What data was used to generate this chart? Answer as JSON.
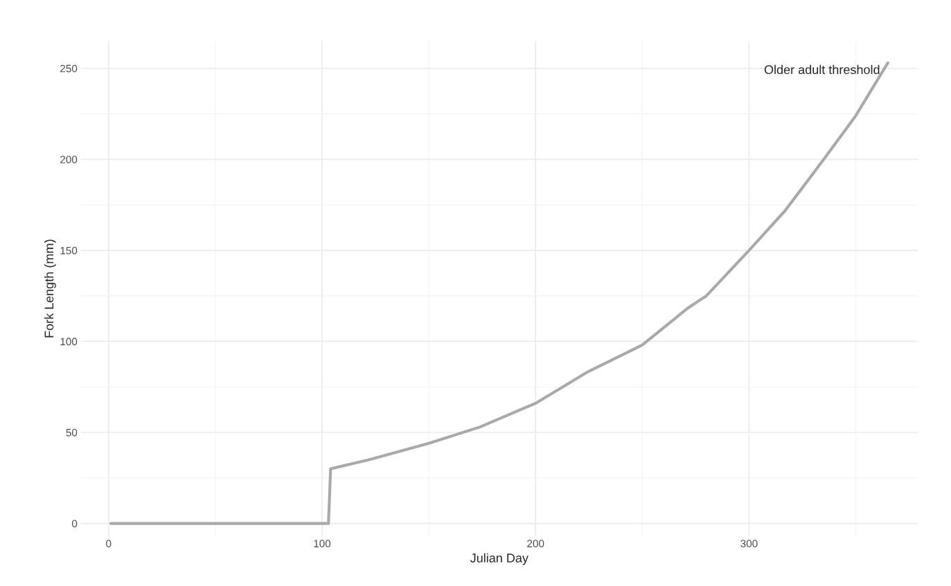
{
  "chart_data": {
    "type": "line",
    "xlabel": "Julian Day",
    "ylabel": "Fork Length (mm)",
    "series": [
      {
        "color": "#a9a9a9",
        "x": [
          1,
          103,
          104,
          122,
          150,
          174,
          200,
          224,
          250,
          271,
          280,
          300,
          317,
          335,
          350,
          365
        ],
        "values": [
          0,
          0,
          30,
          35,
          44,
          53,
          66,
          83,
          98,
          118,
          125,
          150,
          172,
          200,
          224,
          253
        ]
      }
    ],
    "annotations": [
      "Older adult threshold"
    ],
    "xlim": [
      -13,
      379
    ],
    "ylim": [
      -7,
      265
    ],
    "xticks": [
      0,
      100,
      200,
      300
    ],
    "yticks": [
      0,
      50,
      100,
      150,
      200,
      250
    ],
    "grid": true,
    "legend": false,
    "marker": "none",
    "line_style": "solid"
  }
}
